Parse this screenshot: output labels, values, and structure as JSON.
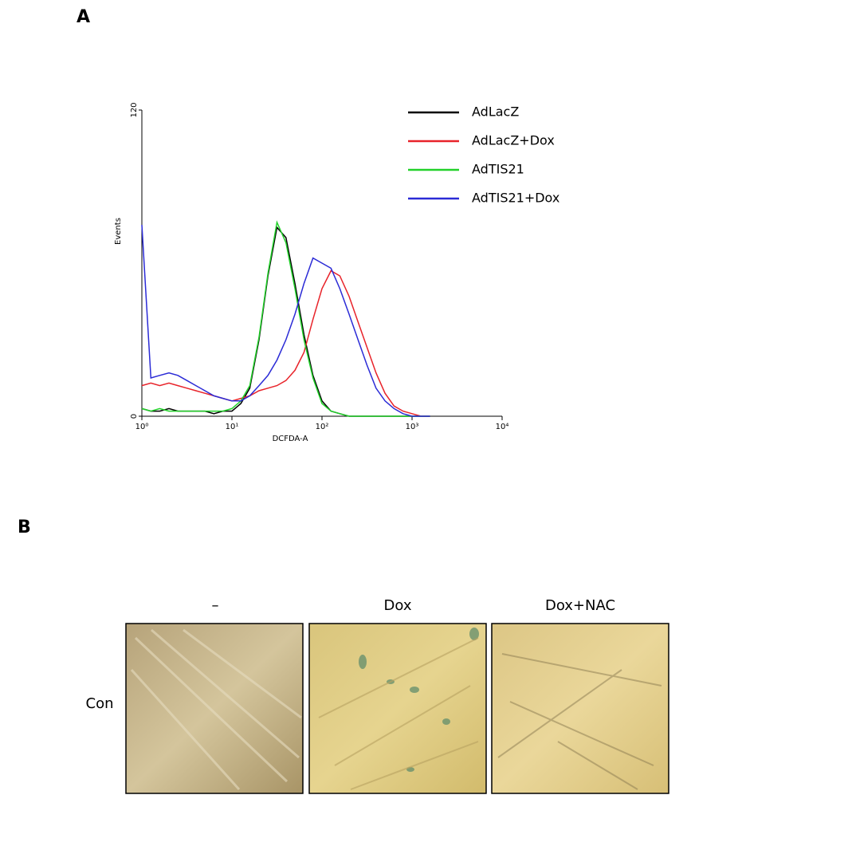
{
  "figure_labels": {
    "a": "A",
    "b": "B"
  },
  "chart_data": {
    "type": "line",
    "x_label": "DCFDA-A",
    "y_label": "Events",
    "x": [
      1,
      1.26,
      1.58,
      2,
      2.51,
      3.16,
      3.98,
      5.01,
      6.31,
      7.94,
      10,
      12.6,
      15.8,
      20,
      25.1,
      31.6,
      39.8,
      50.1,
      63.1,
      79.4,
      100,
      126,
      158,
      200,
      251,
      316,
      398,
      501,
      631,
      794,
      1000,
      1259,
      1585
    ],
    "series": [
      {
        "name": "AdLacZ",
        "color": "#000000",
        "values": [
          3,
          2,
          2,
          3,
          2,
          2,
          2,
          2,
          1,
          2,
          2,
          5,
          11,
          30,
          55,
          74,
          70,
          52,
          32,
          16,
          6,
          2,
          1,
          0,
          0,
          0,
          0,
          0,
          0,
          0,
          0,
          0,
          0
        ]
      },
      {
        "name": "AdLacZ+Dox",
        "color": "#e8232a",
        "values": [
          12,
          13,
          12,
          13,
          12,
          11,
          10,
          9,
          8,
          7,
          6,
          7,
          8,
          10,
          11,
          12,
          14,
          18,
          25,
          38,
          50,
          57,
          55,
          47,
          37,
          27,
          17,
          9,
          4,
          2,
          1,
          0,
          0
        ]
      },
      {
        "name": "AdTIS21",
        "color": "#22d12a",
        "values": [
          3,
          2,
          3,
          2,
          2,
          2,
          2,
          2,
          2,
          2,
          3,
          6,
          12,
          31,
          56,
          76,
          68,
          50,
          30,
          15,
          5,
          2,
          1,
          0,
          0,
          0,
          0,
          0,
          0,
          0,
          0,
          0,
          0
        ]
      },
      {
        "name": "AdTIS21+Dox",
        "color": "#2b2bd6",
        "values": [
          75,
          15,
          16,
          17,
          16,
          14,
          12,
          10,
          8,
          7,
          6,
          6,
          8,
          12,
          16,
          22,
          30,
          40,
          52,
          62,
          60,
          58,
          50,
          40,
          30,
          20,
          11,
          6,
          3,
          1,
          0,
          0,
          0
        ]
      }
    ],
    "log_x": true,
    "xlim": [
      1,
      10000
    ],
    "xticks": [
      {
        "value": 1,
        "label": "10⁰"
      },
      {
        "value": 10,
        "label": "10¹"
      },
      {
        "value": 100,
        "label": "10²"
      },
      {
        "value": 1000,
        "label": "10³"
      },
      {
        "value": 10000,
        "label": "10⁴"
      }
    ],
    "ylim": [
      0,
      120
    ],
    "yticks": [
      0,
      120
    ],
    "legend": "top-right"
  },
  "panel_b": {
    "columns": [
      "–",
      "Dox",
      "Dox+NAC"
    ],
    "rows": [
      "Con"
    ]
  }
}
